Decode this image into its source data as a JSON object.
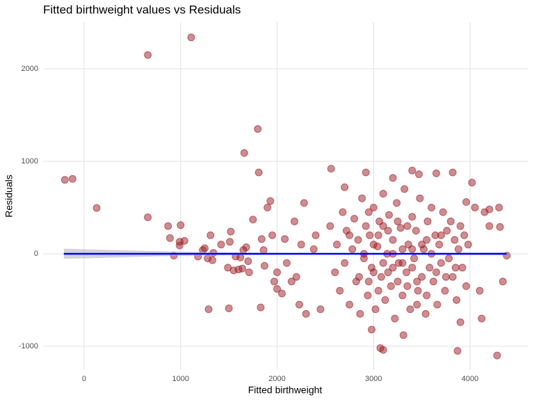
{
  "chart_data": {
    "type": "scatter",
    "title": "Fitted birthweight values vs Residuals",
    "x_label": "Fitted birthweight",
    "y_label": "Residuals",
    "color": "#9b1c23",
    "grid": true,
    "xlim": [
      -425,
      4605
    ],
    "ylim": [
      -1256,
      2504
    ],
    "xticks": [
      0,
      1000,
      2000,
      3000,
      4000
    ],
    "yticks": [
      -1000,
      0,
      1000,
      2000
    ],
    "x": [
      -200,
      -120,
      130,
      660,
      1110,
      660,
      870,
      890,
      930,
      990,
      1000,
      990,
      1040,
      1180,
      1230,
      1250,
      1280,
      1290,
      1310,
      1330,
      1340,
      1420,
      1490,
      1500,
      1510,
      1520,
      1550,
      1570,
      1600,
      1620,
      1640,
      1650,
      1660,
      1680,
      1700,
      1710,
      1750,
      1800,
      1810,
      1830,
      1840,
      1860,
      1870,
      1900,
      1930,
      1950,
      1970,
      2000,
      2000,
      2050,
      2080,
      2100,
      2150,
      2180,
      2200,
      2230,
      2250,
      2280,
      2300,
      2380,
      2400,
      2450,
      2560,
      2700,
      2920,
      2980,
      3070,
      3100,
      3200,
      3310,
      3400,
      3470,
      3650,
      3820,
      3870,
      3960,
      4020,
      4050,
      4120,
      4150,
      4200,
      4280,
      4300,
      4310,
      4340,
      4380,
      3900,
      4100,
      4200,
      2550,
      2600,
      2620,
      2650,
      2680,
      2700,
      2720,
      2750,
      2780,
      2800,
      2820,
      2840,
      2860,
      2880,
      2900,
      2920,
      2940,
      2960,
      2980,
      3000,
      3020,
      3040,
      3060,
      3080,
      3100,
      3120,
      3140,
      3160,
      3180,
      3200,
      3220,
      3240,
      3260,
      3280,
      3300,
      3320,
      3340,
      3360,
      3380,
      3400,
      3420,
      3440,
      3460,
      3480,
      3500,
      3520,
      3540,
      3560,
      3580,
      3600,
      3620,
      3640,
      3660,
      3680,
      3700,
      3720,
      3740,
      3760,
      3780,
      3800,
      3820,
      3840,
      3860,
      3880,
      3900,
      3920,
      3940,
      3960,
      3980,
      2750,
      2850,
      2950,
      3050,
      3150,
      3250,
      3350,
      3450,
      3550,
      3650,
      3750,
      3850,
      2900,
      3000,
      3100,
      3200,
      3300,
      3400,
      3500,
      3600,
      3700,
      3150,
      3250,
      3050,
      2950,
      3350,
      3450,
      3550,
      3000,
      3100,
      3200,
      3300,
      3400
    ],
    "values": [
      800,
      810,
      495,
      2150,
      2340,
      395,
      300,
      170,
      -20,
      90,
      310,
      130,
      140,
      -30,
      40,
      60,
      -50,
      -600,
      200,
      -70,
      10,
      100,
      -150,
      -590,
      130,
      240,
      -180,
      -30,
      -170,
      -40,
      -160,
      40,
      1090,
      70,
      -80,
      -200,
      370,
      1350,
      880,
      -580,
      160,
      40,
      -130,
      500,
      570,
      200,
      -300,
      -380,
      -200,
      -430,
      160,
      -100,
      -300,
      350,
      -250,
      -550,
      100,
      550,
      -650,
      50,
      200,
      -600,
      920,
      720,
      880,
      -820,
      -1020,
      -1040,
      820,
      -880,
      900,
      860,
      870,
      880,
      -1050,
      560,
      770,
      500,
      -700,
      450,
      480,
      -1100,
      500,
      290,
      -300,
      -20,
      -740,
      -400,
      300,
      300,
      -200,
      100,
      -400,
      450,
      -100,
      250,
      -550,
      50,
      380,
      -300,
      150,
      -650,
      600,
      -50,
      300,
      -450,
      200,
      -150,
      500,
      -600,
      80,
      350,
      -250,
      650,
      -500,
      0,
      420,
      -350,
      150,
      -700,
      550,
      -100,
      280,
      -450,
      700,
      -200,
      100,
      -600,
      400,
      -50,
      250,
      -400,
      600,
      -250,
      50,
      -650,
      350,
      -150,
      500,
      -300,
      200,
      -550,
      100,
      -100,
      450,
      -400,
      250,
      -50,
      350,
      -250,
      150,
      -500,
      50,
      300,
      -150,
      200,
      -350,
      100,
      200,
      -250,
      -300,
      -400,
      250,
      -300,
      300,
      -300,
      150,
      -200,
      -250,
      -150,
      0,
      100,
      -100,
      0,
      50,
      -150,
      100,
      0,
      200,
      -200,
      350,
      200,
      450,
      -350,
      -550,
      -450,
      -200,
      300,
      -150,
      -100,
      50
    ],
    "fit": {
      "type": "line",
      "color": "#0000ff",
      "band_color": "#b8b8b8",
      "x": [
        -210,
        1000,
        2000,
        3000,
        4380
      ],
      "values": [
        0,
        0,
        0,
        0,
        0
      ],
      "band_lower": [
        -55,
        -22,
        -10,
        -5,
        -15
      ],
      "band_upper": [
        55,
        22,
        10,
        5,
        15
      ]
    }
  }
}
